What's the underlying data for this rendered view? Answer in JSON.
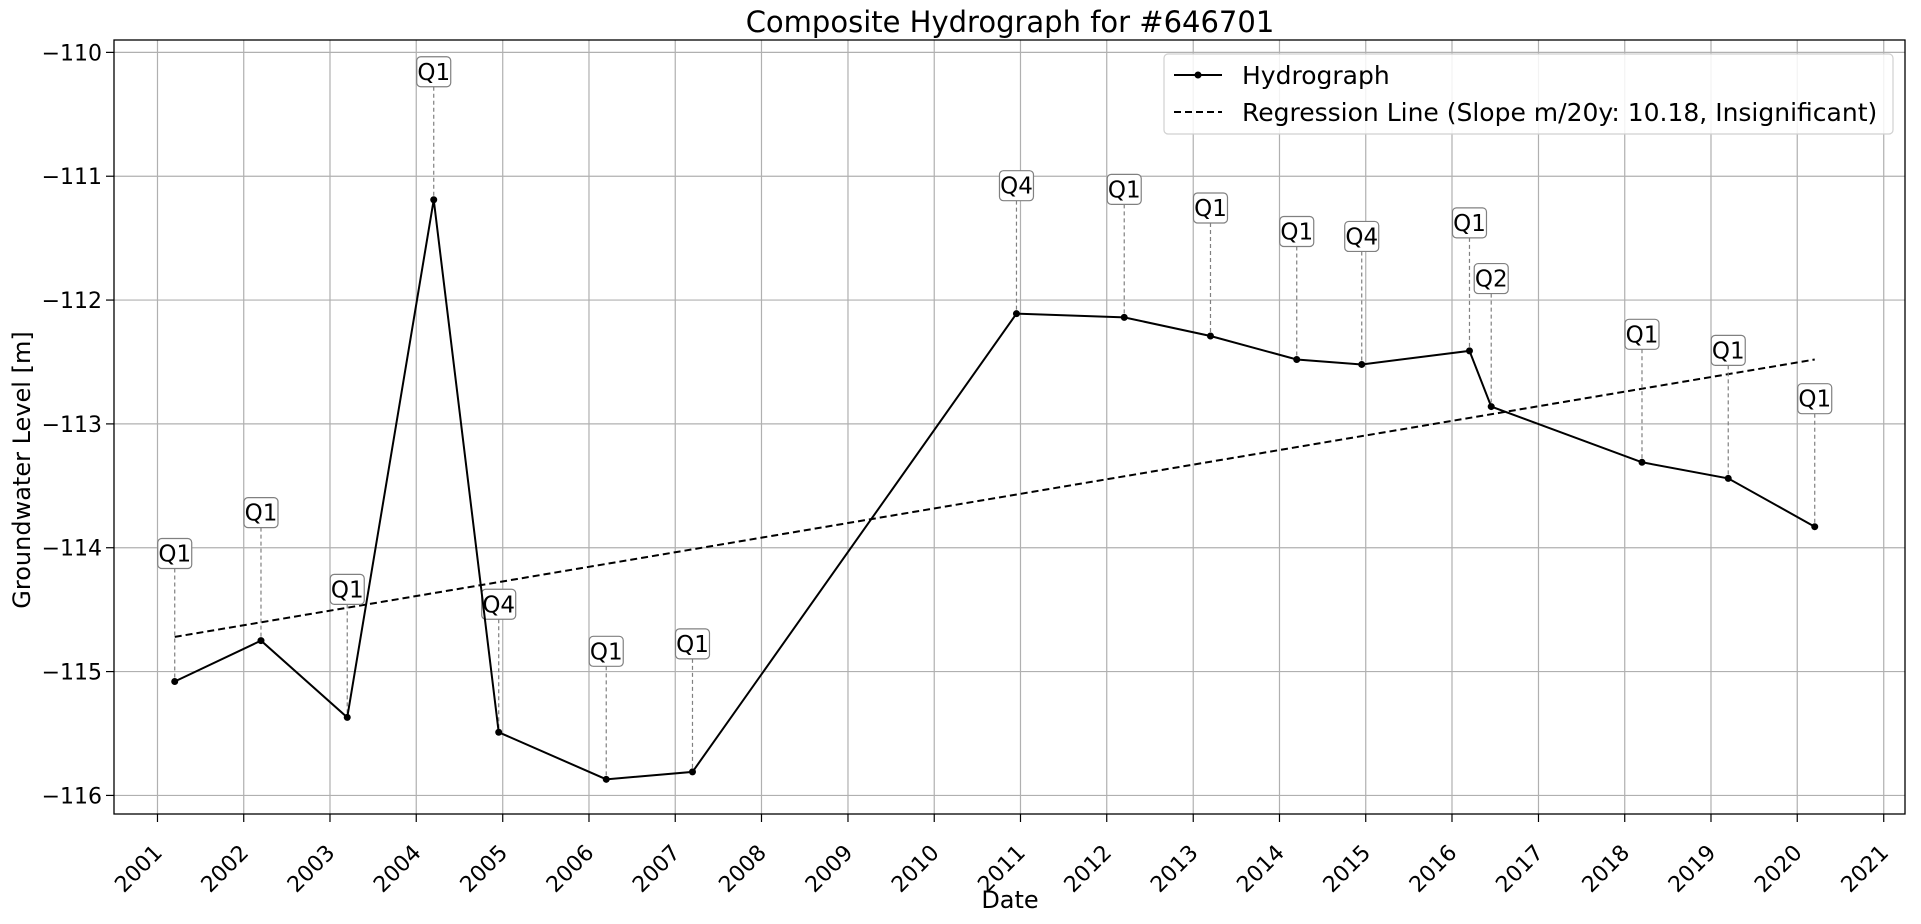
{
  "chart_data": {
    "type": "line",
    "title": "Composite Hydrograph for  #646701",
    "xlabel": "Date",
    "ylabel": "Groundwater Level [m]",
    "xlim": [
      "2000-07-01",
      "2021-04-01"
    ],
    "ylim": [
      -116.15,
      -109.9
    ],
    "x_ticks": [
      "2001",
      "2002",
      "2003",
      "2004",
      "2005",
      "2006",
      "2007",
      "2008",
      "2009",
      "2010",
      "2011",
      "2012",
      "2013",
      "2014",
      "2015",
      "2016",
      "2017",
      "2018",
      "2019",
      "2020",
      "2021"
    ],
    "y_ticks": [
      -116,
      -115,
      -114,
      -113,
      -112,
      -111,
      -110
    ],
    "y_tick_labels": [
      "−116",
      "−115",
      "−114",
      "−113",
      "−112",
      "−111",
      "−110"
    ],
    "grid": true,
    "legend_position": "top-right",
    "series": [
      {
        "name": "Hydrograph",
        "style": "solid-with-markers",
        "color": "#000000",
        "points": [
          {
            "date": "2001-03-15",
            "value": -115.08,
            "label": "Q1"
          },
          {
            "date": "2002-03-15",
            "value": -114.75,
            "label": "Q1"
          },
          {
            "date": "2003-03-15",
            "value": -115.37,
            "label": "Q1"
          },
          {
            "date": "2004-03-15",
            "value": -111.19,
            "label": "Q1"
          },
          {
            "date": "2004-12-15",
            "value": -115.49,
            "label": "Q4"
          },
          {
            "date": "2006-03-15",
            "value": -115.87,
            "label": "Q1"
          },
          {
            "date": "2007-03-15",
            "value": -115.81,
            "label": "Q1"
          },
          {
            "date": "2010-12-15",
            "value": -112.11,
            "label": "Q4"
          },
          {
            "date": "2012-03-15",
            "value": -112.14,
            "label": "Q1"
          },
          {
            "date": "2013-03-15",
            "value": -112.29,
            "label": "Q1"
          },
          {
            "date": "2014-03-15",
            "value": -112.48,
            "label": "Q1"
          },
          {
            "date": "2014-12-15",
            "value": -112.52,
            "label": "Q4"
          },
          {
            "date": "2016-03-15",
            "value": -112.41,
            "label": "Q1"
          },
          {
            "date": "2016-06-15",
            "value": -112.86,
            "label": "Q2"
          },
          {
            "date": "2018-03-15",
            "value": -113.31,
            "label": "Q1"
          },
          {
            "date": "2019-03-15",
            "value": -113.44,
            "label": "Q1"
          },
          {
            "date": "2020-03-15",
            "value": -113.83,
            "label": "Q1"
          }
        ]
      },
      {
        "name": "Regression Line (Slope m/20y: 10.18, Insignificant)",
        "style": "dashed",
        "color": "#000000",
        "points": [
          {
            "date": "2001-03-15",
            "value": -114.72
          },
          {
            "date": "2020-03-15",
            "value": -112.48
          }
        ]
      }
    ]
  }
}
